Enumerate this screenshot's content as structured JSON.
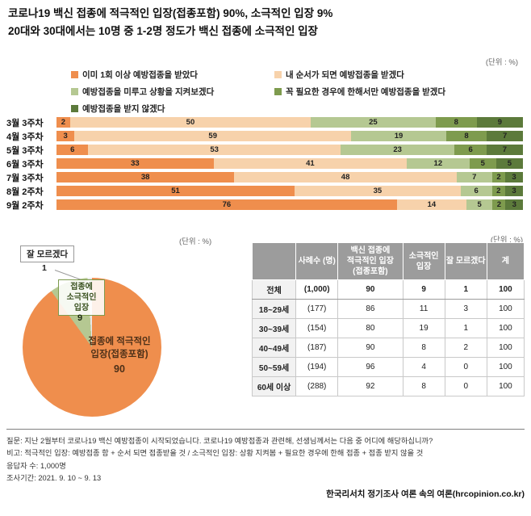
{
  "unit_label": "(단위 : %)",
  "title": {
    "line1": "코로나19 백신 접종에 적극적인 입장(접종포함) 90%, 소극적인 입장 9%",
    "line2": "20대와 30대에서는 10명 중 1-2명 정도가 백신 접종에 소극적인 입장"
  },
  "legend": [
    {
      "label": "이미 1회 이상 예방접종을 받았다",
      "color": "#ef8e4d"
    },
    {
      "label": "내 순서가 되면 예방접종을 받겠다",
      "color": "#f7d2ab"
    },
    {
      "label": "예방접종을 미루고 상황을 지켜보겠다",
      "color": "#b5c892"
    },
    {
      "label": "꼭 필요한 경우에 한해서만 예방접종을 받겠다",
      "color": "#7e9b4e"
    },
    {
      "label": "예방접종을 받지 않겠다",
      "color": "#5c7a3b"
    }
  ],
  "chart_data": [
    {
      "type": "bar",
      "stacked": true,
      "orientation": "horizontal",
      "unit": "%",
      "legend_position": "top",
      "categories": [
        "3월 3주차",
        "4월 3주차",
        "5월 3주차",
        "6월 3주차",
        "7월 3주차",
        "8월 2주차",
        "9월 2주차"
      ],
      "series": [
        {
          "name": "이미 1회 이상 예방접종을 받았다",
          "values": [
            2,
            3,
            6,
            33,
            38,
            51,
            76
          ]
        },
        {
          "name": "내 순서가 되면 예방접종을 받겠다",
          "values": [
            50,
            59,
            53,
            41,
            48,
            35,
            14
          ]
        },
        {
          "name": "예방접종을 미루고 상황을 지켜보겠다",
          "values": [
            25,
            19,
            23,
            12,
            7,
            6,
            5
          ]
        },
        {
          "name": "꼭 필요한 경우에 한해서만 예방접종을 받겠다",
          "values": [
            8,
            8,
            6,
            5,
            2,
            2,
            2
          ]
        },
        {
          "name": "예방접종을 받지 않겠다",
          "values": [
            9,
            7,
            7,
            5,
            3,
            3,
            3
          ]
        }
      ]
    },
    {
      "type": "pie",
      "unit": "%",
      "labels": [
        "접종에 적극적인 입장(접종포함)",
        "접종에 소극적인 입장",
        "잘 모르겠다"
      ],
      "values": [
        90,
        9,
        1
      ],
      "colors": [
        "#ef8e4d",
        "#b5c892",
        "#e9e9e9"
      ]
    },
    {
      "type": "table",
      "headers": [
        "",
        "사례수 (명)",
        "백신 접종에 적극적인 입장 (접종포함)",
        "소극적인 입장",
        "잘 모르겠다",
        "계"
      ],
      "rows": [
        [
          "전체",
          "(1,000)",
          "90",
          "9",
          "1",
          "100"
        ],
        [
          "18~29세",
          "(177)",
          "86",
          "11",
          "3",
          "100"
        ],
        [
          "30~39세",
          "(154)",
          "80",
          "19",
          "1",
          "100"
        ],
        [
          "40~49세",
          "(187)",
          "90",
          "8",
          "2",
          "100"
        ],
        [
          "50~59세",
          "(194)",
          "96",
          "4",
          "0",
          "100"
        ],
        [
          "60세 이상",
          "(288)",
          "92",
          "8",
          "0",
          "100"
        ]
      ]
    }
  ],
  "footer": {
    "line1": "질문:  지난 2월부터 코로나19 백신 예방접종이 시작되었습니다. 코로나19 예방접종과 관련해, 선생님께서는 다음 중 어디에 해당하십니까?",
    "line2": "비고:  적극적인 입장: 예방접종 함 + 순서 되면 접종받을 것 / 소극적인 입장: 상황 지켜봄 + 필요한 경우에 한해 접종 + 접종 받지 않을 것",
    "line3": "응답자 수: 1,000명",
    "line4": "조사기간: 2021. 9. 10 ~ 9. 13",
    "source": "한국리서치 정기조사 여론 속의 여론(hrcopinion.co.kr)"
  }
}
